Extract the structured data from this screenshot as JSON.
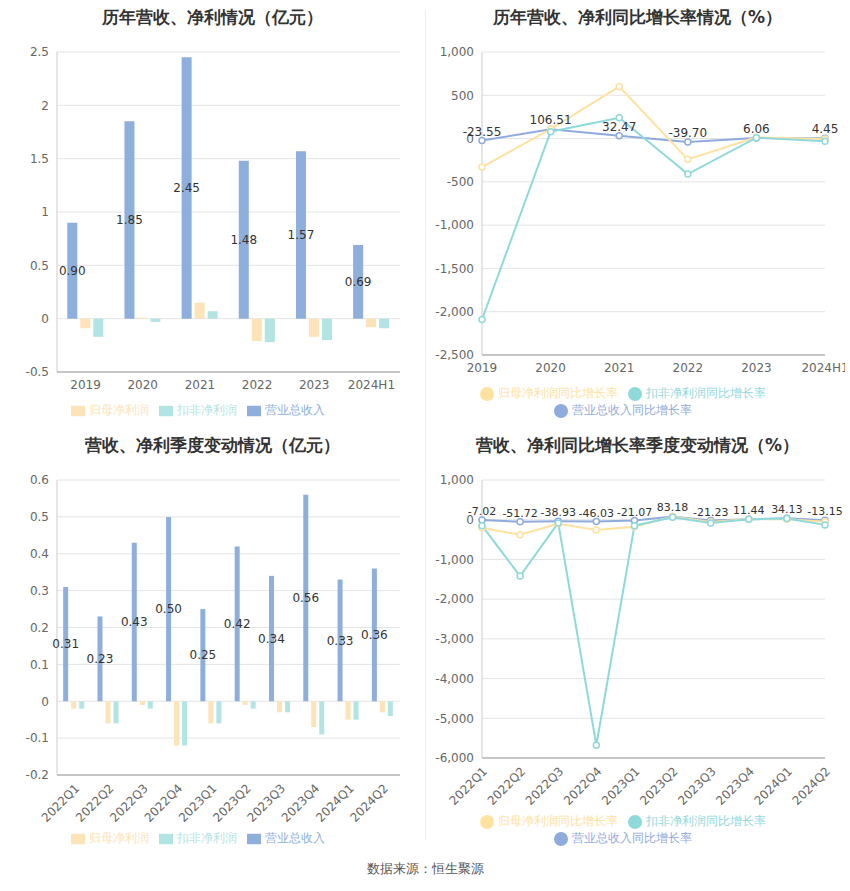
{
  "source": "数据来源：恒生聚源",
  "chart_data": [
    {
      "type": "bar",
      "title": "历年营收、净利情况（亿元）",
      "categories": [
        "2019",
        "2020",
        "2021",
        "2022",
        "2023",
        "2024H1"
      ],
      "ylim": [
        -0.5,
        2.5
      ],
      "yticks": [
        -0.5,
        0,
        0.5,
        1,
        1.5,
        2,
        2.5
      ],
      "grid": true,
      "legend": "bottom",
      "series": [
        {
          "name": "营业总收入",
          "color": "#8eaedc",
          "values": [
            0.9,
            1.85,
            2.45,
            1.48,
            1.57,
            0.69
          ],
          "data_labels": true,
          "value_labels": [
            "0.90",
            "1.85",
            "2.45",
            "1.48",
            "1.57",
            "0.69"
          ]
        },
        {
          "name": "归母净利润",
          "color": "#fde3b8",
          "values": [
            -0.09,
            0.01,
            0.15,
            -0.21,
            -0.17,
            -0.08
          ]
        },
        {
          "name": "扣非净利润",
          "color": "#b2e4e4",
          "values": [
            -0.17,
            -0.03,
            0.07,
            -0.22,
            -0.2,
            -0.09
          ]
        }
      ]
    },
    {
      "type": "line",
      "title": "历年营收、净利同比增长率情况（%）",
      "categories": [
        "2019",
        "2020",
        "2021",
        "2022",
        "2023",
        "2024H1"
      ],
      "ylim": [
        -2500,
        1000
      ],
      "yticks": [
        {
          "value": -2500,
          "label": "-2,500"
        },
        {
          "value": -2000,
          "label": "-2,000"
        },
        {
          "value": -1500,
          "label": "-1,500"
        },
        {
          "value": -1000,
          "label": "-1,000"
        },
        -500,
        0,
        500,
        {
          "value": 1000,
          "label": "1,000"
        }
      ],
      "grid": true,
      "legend": "bottom",
      "series": [
        {
          "name": "营业总收入同比增长率",
          "color": "#8faadc",
          "marker": "circle",
          "values": [
            -23.55,
            106.51,
            32.47,
            -39.7,
            6.06,
            4.45
          ],
          "data_labels": true,
          "value_labels": [
            "-23.55",
            "106.51",
            "32.47",
            "-39.70",
            "6.06",
            "4.45"
          ]
        },
        {
          "name": "归母净利润同比增长率",
          "color": "#ffe2a0",
          "marker": "circle",
          "values": [
            -330,
            110,
            600,
            -240,
            15,
            -5
          ]
        },
        {
          "name": "扣非净利润同比增长率",
          "color": "#8fd9db",
          "marker": "circle",
          "values": [
            -2090,
            80,
            240,
            -410,
            10,
            -30
          ]
        }
      ]
    },
    {
      "type": "bar",
      "title": "营收、净利季度变动情况（亿元）",
      "categories": [
        "2022Q1",
        "2022Q2",
        "2022Q3",
        "2022Q4",
        "2023Q1",
        "2023Q2",
        "2023Q3",
        "2023Q4",
        "2024Q1",
        "2024Q2"
      ],
      "ylim": [
        -0.2,
        0.6
      ],
      "yticks": [
        -0.2,
        -0.1,
        0,
        0.1,
        0.2,
        0.3,
        0.4,
        0.5,
        0.6
      ],
      "grid": true,
      "legend": "bottom",
      "series": [
        {
          "name": "营业总收入",
          "color": "#8eaedc",
          "values": [
            0.31,
            0.23,
            0.43,
            0.5,
            0.25,
            0.42,
            0.34,
            0.56,
            0.33,
            0.36
          ],
          "data_labels": true,
          "value_labels": [
            "0.31",
            "0.23",
            "0.43",
            "0.50",
            "0.25",
            "0.42",
            "0.34",
            "0.56",
            "0.33",
            "0.36"
          ]
        },
        {
          "name": "归母净利润",
          "color": "#fde3b8",
          "values": [
            -0.02,
            -0.06,
            -0.01,
            -0.12,
            -0.06,
            -0.01,
            -0.03,
            -0.07,
            -0.05,
            -0.03
          ]
        },
        {
          "name": "扣非净利润",
          "color": "#b2e4e4",
          "values": [
            -0.02,
            -0.06,
            -0.02,
            -0.12,
            -0.06,
            -0.02,
            -0.03,
            -0.09,
            -0.05,
            -0.04
          ]
        }
      ]
    },
    {
      "type": "line",
      "title": "营收、净利同比增长率季度变动情况（%）",
      "categories": [
        "2022Q1",
        "2022Q2",
        "2022Q3",
        "2022Q4",
        "2023Q1",
        "2023Q2",
        "2023Q3",
        "2023Q4",
        "2024Q1",
        "2024Q2"
      ],
      "ylim": [
        -6000,
        1000
      ],
      "yticks": [
        {
          "value": -6000,
          "label": "-6,000"
        },
        {
          "value": -5000,
          "label": "-5,000"
        },
        {
          "value": -4000,
          "label": "-4,000"
        },
        {
          "value": -3000,
          "label": "-3,000"
        },
        {
          "value": -2000,
          "label": "-2,000"
        },
        {
          "value": -1000,
          "label": "-1,000"
        },
        0,
        {
          "value": 1000,
          "label": "1,000"
        }
      ],
      "grid": true,
      "legend": "bottom",
      "series": [
        {
          "name": "营业总收入同比增长率",
          "color": "#8faadc",
          "marker": "circle",
          "values": [
            -7.02,
            -51.72,
            -38.93,
            -46.03,
            -21.07,
            83.18,
            -21.23,
            11.44,
            34.13,
            -13.15
          ],
          "data_labels": true
        },
        {
          "name": "归母净利润同比增长率",
          "color": "#ffe2a0",
          "marker": "circle",
          "values": [
            -200,
            -380,
            -100,
            -260,
            -180,
            80,
            -60,
            20,
            10,
            -50
          ]
        },
        {
          "name": "扣非净利润同比增长率",
          "color": "#8fd9db",
          "marker": "circle",
          "values": [
            -150,
            -1420,
            -80,
            -5680,
            -150,
            60,
            -80,
            10,
            30,
            -130
          ]
        }
      ]
    }
  ]
}
